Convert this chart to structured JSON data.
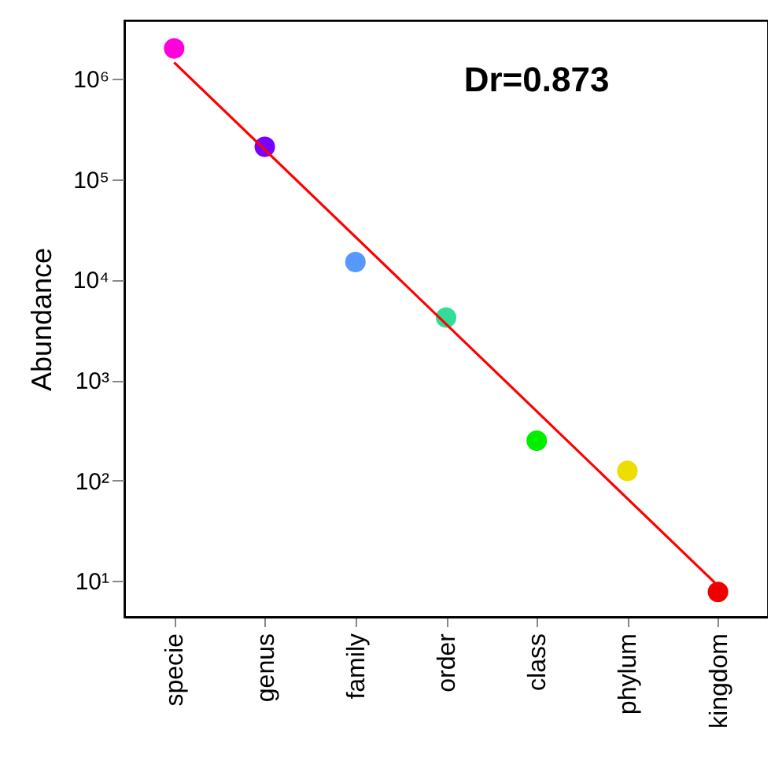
{
  "chart_data": {
    "type": "scatter",
    "ylabel": "Abundance",
    "log": "y",
    "grid": false,
    "categories": [
      "specie",
      "genus",
      "family",
      "order",
      "class",
      "phylum",
      "kingdom"
    ],
    "ylim": [
      4.4,
      3800000
    ],
    "yticks": [
      {
        "value": 10,
        "label": "10¹"
      },
      {
        "value": 100,
        "label": "10²"
      },
      {
        "value": 1000,
        "label": "10³"
      },
      {
        "value": 10000,
        "label": "10⁴"
      },
      {
        "value": 100000,
        "label": "10⁵"
      },
      {
        "value": 1000000,
        "label": "10⁶"
      }
    ],
    "annotations": [
      "Dr=0.873"
    ],
    "series": [
      {
        "marker": "circle",
        "colors": [
          "#ff00dd",
          "#7700ff",
          "#5599ff",
          "#33dd99",
          "#00ee00",
          "#eedd00",
          "#ee0000"
        ],
        "values": [
          2000000,
          210000,
          15000,
          4200,
          250,
          125,
          7.8
        ]
      },
      {
        "type": "line",
        "color": "#ff0000",
        "x": [
          "specie",
          "kingdom"
        ],
        "values": [
          1450000,
          9
        ]
      }
    ]
  }
}
